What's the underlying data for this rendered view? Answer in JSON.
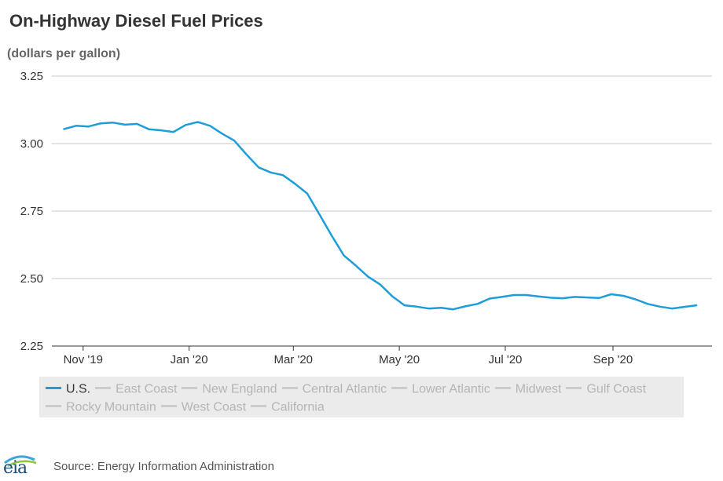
{
  "title": "On-Highway Diesel Fuel Prices",
  "subtitle": "(dollars per gallon)",
  "source": "Source: Energy Information Administration",
  "logo_text": "eia",
  "chart_data": {
    "type": "line",
    "title": "On-Highway Diesel Fuel Prices",
    "ylabel": "(dollars per gallon)",
    "ylim": [
      2.25,
      3.25
    ],
    "yticks": [
      "2.25",
      "2.50",
      "2.75",
      "3.00",
      "3.25"
    ],
    "xlim": [
      "2019-10-14",
      "2020-10-28"
    ],
    "xtick_labels": [
      {
        "date": "2019-11-01",
        "label": "Nov '19"
      },
      {
        "date": "2020-01-01",
        "label": "Jan '20"
      },
      {
        "date": "2020-03-01",
        "label": "Mar '20"
      },
      {
        "date": "2020-05-01",
        "label": "May '20"
      },
      {
        "date": "2020-07-01",
        "label": "Jul '20"
      },
      {
        "date": "2020-09-01",
        "label": "Sep '20"
      }
    ],
    "grid": true,
    "legend_placement": "bottom",
    "series": [
      {
        "name": "U.S.",
        "color": "#1f9ddb",
        "x": [
          "2019-10-21",
          "2019-10-28",
          "2019-11-04",
          "2019-11-11",
          "2019-11-18",
          "2019-11-25",
          "2019-12-02",
          "2019-12-09",
          "2019-12-16",
          "2019-12-23",
          "2019-12-30",
          "2020-01-06",
          "2020-01-13",
          "2020-01-20",
          "2020-01-27",
          "2020-02-03",
          "2020-02-10",
          "2020-02-17",
          "2020-02-24",
          "2020-03-02",
          "2020-03-09",
          "2020-03-16",
          "2020-03-23",
          "2020-03-30",
          "2020-04-06",
          "2020-04-13",
          "2020-04-20",
          "2020-04-27",
          "2020-05-04",
          "2020-05-11",
          "2020-05-18",
          "2020-05-25",
          "2020-06-01",
          "2020-06-08",
          "2020-06-15",
          "2020-06-22",
          "2020-06-29",
          "2020-07-06",
          "2020-07-13",
          "2020-07-20",
          "2020-07-27",
          "2020-08-03",
          "2020-08-10",
          "2020-08-17",
          "2020-08-24",
          "2020-08-31",
          "2020-09-07",
          "2020-09-14",
          "2020-09-21",
          "2020-09-28",
          "2020-10-05",
          "2020-10-12",
          "2020-10-19"
        ],
        "values": [
          3.054,
          3.066,
          3.063,
          3.075,
          3.078,
          3.07,
          3.073,
          3.053,
          3.049,
          3.043,
          3.069,
          3.08,
          3.066,
          3.037,
          3.011,
          2.96,
          2.912,
          2.893,
          2.883,
          2.851,
          2.815,
          2.738,
          2.66,
          2.586,
          2.548,
          2.507,
          2.478,
          2.434,
          2.401,
          2.396,
          2.389,
          2.392,
          2.386,
          2.397,
          2.406,
          2.426,
          2.432,
          2.439,
          2.439,
          2.434,
          2.429,
          2.427,
          2.432,
          2.43,
          2.428,
          2.442,
          2.436,
          2.423,
          2.406,
          2.396,
          2.389,
          2.395,
          2.401
        ]
      },
      {
        "name": "East Coast",
        "color": "#cccccc",
        "x": [],
        "values": []
      },
      {
        "name": "New England",
        "color": "#cccccc",
        "x": [],
        "values": []
      },
      {
        "name": "Central Atlantic",
        "color": "#cccccc",
        "x": [],
        "values": []
      },
      {
        "name": "Lower Atlantic",
        "color": "#cccccc",
        "x": [],
        "values": []
      },
      {
        "name": "Midwest",
        "color": "#cccccc",
        "x": [],
        "values": []
      },
      {
        "name": "Gulf Coast",
        "color": "#cccccc",
        "x": [],
        "values": []
      },
      {
        "name": "Rocky Mountain",
        "color": "#cccccc",
        "x": [],
        "values": []
      },
      {
        "name": "West Coast",
        "color": "#cccccc",
        "x": [],
        "values": []
      },
      {
        "name": "California",
        "color": "#cccccc",
        "x": [],
        "values": []
      }
    ]
  },
  "legend": [
    {
      "label": "U.S.",
      "active": true,
      "color": "#1f9ddb"
    },
    {
      "label": "East Coast",
      "active": false,
      "color": "#cccccc"
    },
    {
      "label": "New England",
      "active": false,
      "color": "#cccccc"
    },
    {
      "label": "Central Atlantic",
      "active": false,
      "color": "#cccccc"
    },
    {
      "label": "Lower Atlantic",
      "active": false,
      "color": "#cccccc"
    },
    {
      "label": "Midwest",
      "active": false,
      "color": "#cccccc"
    },
    {
      "label": "Gulf Coast",
      "active": false,
      "color": "#cccccc"
    },
    {
      "label": "Rocky Mountain",
      "active": false,
      "color": "#cccccc"
    },
    {
      "label": "West Coast",
      "active": false,
      "color": "#cccccc"
    },
    {
      "label": "California",
      "active": false,
      "color": "#cccccc"
    }
  ]
}
